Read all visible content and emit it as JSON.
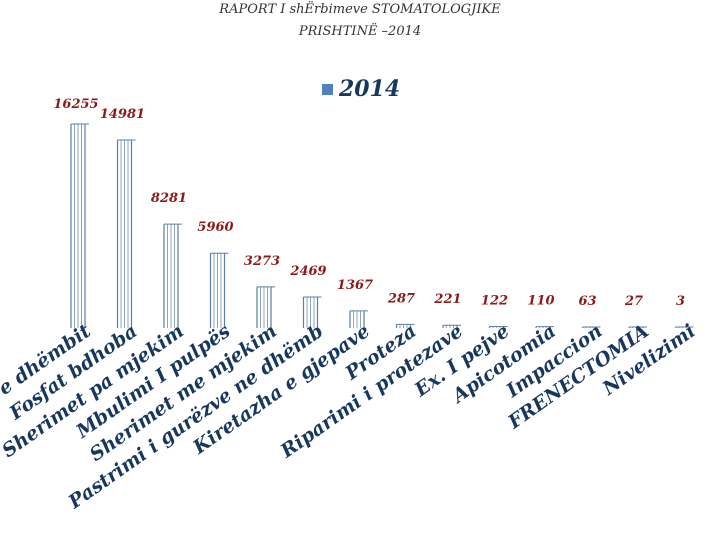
{
  "chart_data": {
    "type": "bar",
    "title_line1": "RAPORT I shËrbimeve STOMATOLOGJIKE",
    "title_line2": "PRISHTINË –2014",
    "legend": [
      "2014"
    ],
    "categories": [
      "Mbushje (nxerja e dhëmbit",
      "Fosfat bdhoba",
      "Sherimet pa mjekim",
      "Mbulimi I pulpës",
      "Sherimet me mjekim",
      "Pastrimi i gurëzve ne dhëmb",
      "Kiretazha e gjepave",
      "Proteza",
      "Riparimi i protezave",
      "Ex. I pejve",
      "Apicotomia",
      "Impaccion",
      "FRENECTOMIA",
      "Nivelizimi"
    ],
    "series": [
      {
        "name": "2014",
        "values": [
          16255,
          14981,
          8281,
          5960,
          3273,
          2469,
          1367,
          287,
          221,
          122,
          110,
          63,
          27,
          3
        ]
      }
    ],
    "ylim": [
      0,
      16255
    ],
    "colors": {
      "bar_stroke": "#5b7fa8",
      "label": "#8b1a1a",
      "axis_text": "#17375e",
      "legend": "#4f81bd"
    }
  }
}
